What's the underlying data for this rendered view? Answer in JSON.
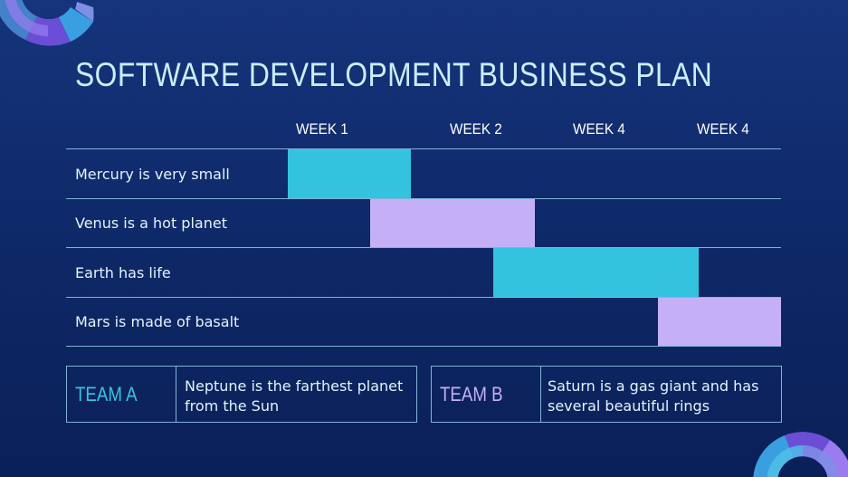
{
  "title": "SOFTWARE DEVELOPMENT BUSINESS PLAN",
  "weeks": [
    "WEEK 1",
    "WEEK 2",
    "WEEK 4",
    "WEEK 4"
  ],
  "rows": [
    {
      "label": "Mercury is very small",
      "color": "#34c3df"
    },
    {
      "label": "Venus is a hot planet",
      "color": "#c5b0f7"
    },
    {
      "label": "Earth has life",
      "color": "#34c3df"
    },
    {
      "label": "Mars is made of basalt",
      "color": "#c5b0f7"
    }
  ],
  "teams": [
    {
      "name": "TEAM A",
      "color": "#38c3e0",
      "description": "Neptune is the farthest planet from the Sun"
    },
    {
      "name": "TEAM B",
      "color": "#c5b0f7",
      "description": "Saturn is a gas giant and has several beautiful rings"
    }
  ],
  "colors": {
    "cyan": "#34c3df",
    "lavender": "#c5b0f7",
    "line": "#7fb3d8"
  }
}
